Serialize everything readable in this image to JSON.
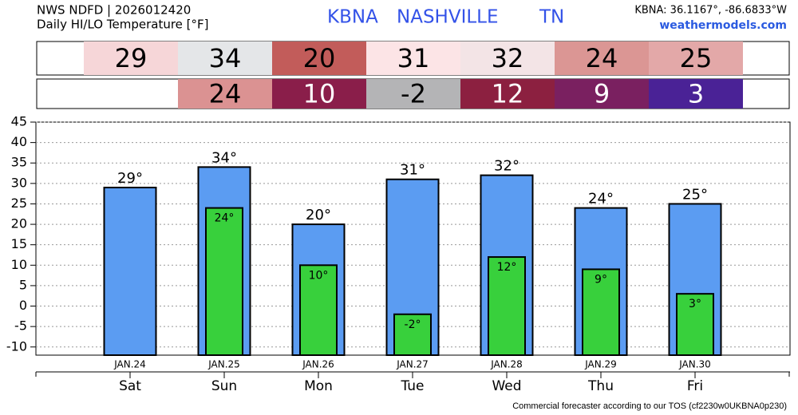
{
  "header": {
    "source": "NWS NDFD | 2026012420",
    "subtitle": "Daily HI/LO Temperature [°F]",
    "station": "KBNA",
    "city": "NASHVILLE",
    "state": "TN",
    "coords": "KBNA: 36.1167°, -86.6833°W",
    "site": "weathermodels.com"
  },
  "footer": "Commercial forecaster according to our TOS (cf2230w0UKBNA0p230)",
  "chart_data": {
    "type": "bar",
    "categories": [
      "JAN.24",
      "JAN.25",
      "JAN.26",
      "JAN.27",
      "JAN.28",
      "JAN.29",
      "JAN.30"
    ],
    "days": [
      "Sat",
      "Sun",
      "Mon",
      "Tue",
      "Wed",
      "Thu",
      "Fri"
    ],
    "series": [
      {
        "color": "#5b9cf2",
        "values": [
          29,
          34,
          20,
          31,
          32,
          24,
          25
        ],
        "value_labels": [
          "29°",
          "34°",
          "20°",
          "31°",
          "32°",
          "24°",
          "25°"
        ],
        "table_colors": [
          "#f6d6d8",
          "#e4e6e8",
          "#c25c5a",
          "#fce4e6",
          "#f3e4e6",
          "#db9694",
          "#e3a8a8"
        ]
      },
      {
        "color": "#38d03c",
        "values": [
          null,
          24,
          10,
          -2,
          12,
          9,
          3
        ],
        "value_labels": [
          null,
          "24°",
          "10°",
          "-2°",
          "12°",
          "9°",
          "3°"
        ],
        "table_colors": [
          null,
          "#db9292",
          "#8a1e4a",
          "#b4b4b6",
          "#8c2040",
          "#7a2060",
          "#4a2296"
        ]
      }
    ],
    "ylim": [
      -12,
      45
    ],
    "yticks": [
      -10,
      -5,
      0,
      5,
      10,
      15,
      20,
      25,
      30,
      35,
      40,
      45
    ],
    "grid": true
  }
}
